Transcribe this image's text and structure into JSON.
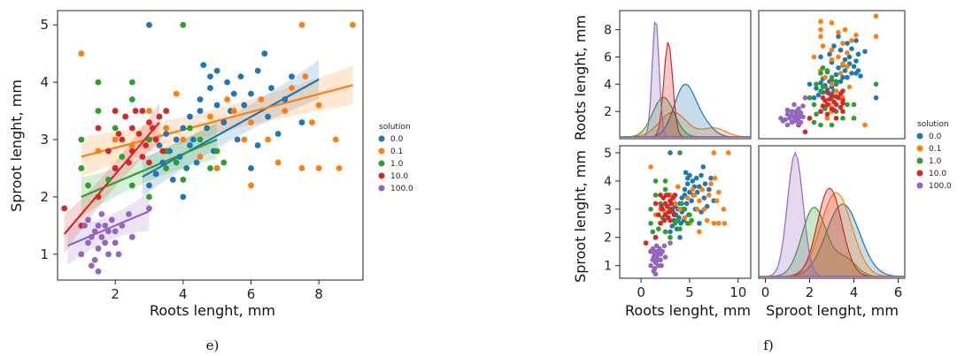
{
  "colors": {
    "0.0": "#1f77b4",
    "0.1": "#ff7f0e",
    "1.0": "#2ca02c",
    "10.0": "#d62728",
    "100.0": "#9467bd"
  },
  "chart_data": [
    {
      "id": "e",
      "type": "scatter",
      "caption": "e)",
      "xlabel": "Roots lenght, mm",
      "ylabel": "Sproot lenght, mm",
      "xlim": [
        0.3,
        9.3
      ],
      "ylim": [
        0.55,
        5.25
      ],
      "xticks": [
        2,
        4,
        6,
        8
      ],
      "yticks": [
        1,
        2,
        3,
        4,
        5
      ],
      "legend": {
        "title": "solution",
        "position": "right",
        "entries": [
          "0.0",
          "0.1",
          "1.0",
          "10.0",
          "100.0"
        ]
      },
      "regression_lines": [
        {
          "name": "0.0",
          "x": [
            2.8,
            8.0
          ],
          "y": [
            2.35,
            4.05
          ]
        },
        {
          "name": "0.1",
          "x": [
            1.0,
            9.0
          ],
          "y": [
            2.7,
            3.95
          ]
        },
        {
          "name": "1.0",
          "x": [
            1.0,
            5.0
          ],
          "y": [
            2.0,
            3.0
          ]
        },
        {
          "name": "10.0",
          "x": [
            0.5,
            3.3
          ],
          "y": [
            1.35,
            3.3
          ]
        },
        {
          "name": "100.0",
          "x": [
            0.6,
            3.0
          ],
          "y": [
            1.15,
            1.75
          ]
        }
      ],
      "series": [
        {
          "name": "0.0",
          "points": [
            [
              3.0,
              5.0
            ],
            [
              4.6,
              4.3
            ],
            [
              4.8,
              4.1
            ],
            [
              5.0,
              4.2
            ],
            [
              5.3,
              4.0
            ],
            [
              5.5,
              3.8
            ],
            [
              5.0,
              3.6
            ],
            [
              4.5,
              3.5
            ],
            [
              4.2,
              3.4
            ],
            [
              4.0,
              3.2
            ],
            [
              3.8,
              3.0
            ],
            [
              3.6,
              2.8
            ],
            [
              3.4,
              2.6
            ],
            [
              3.2,
              2.4
            ],
            [
              3.0,
              2.2
            ],
            [
              4.3,
              3.0
            ],
            [
              4.7,
              3.2
            ],
            [
              5.2,
              3.3
            ],
            [
              5.8,
              3.6
            ],
            [
              6.0,
              3.8
            ],
            [
              6.2,
              4.2
            ],
            [
              6.4,
              4.5
            ],
            [
              6.5,
              3.4
            ],
            [
              6.2,
              2.9
            ],
            [
              5.6,
              3.0
            ],
            [
              4.9,
              2.8
            ],
            [
              4.4,
              2.6
            ],
            [
              4.1,
              2.5
            ],
            [
              3.9,
              2.7
            ],
            [
              3.5,
              3.1
            ],
            [
              7.0,
              3.7
            ],
            [
              7.2,
              4.1
            ],
            [
              7.5,
              3.3
            ],
            [
              6.8,
              3.1
            ],
            [
              6.0,
              2.5
            ],
            [
              5.0,
              2.5
            ],
            [
              4.0,
              2.0
            ],
            [
              3.7,
              2.3
            ],
            [
              4.8,
              3.9
            ],
            [
              5.4,
              3.5
            ],
            [
              6.6,
              3.9
            ],
            [
              4.2,
              2.9
            ],
            [
              3.3,
              2.9
            ],
            [
              4.5,
              3.7
            ],
            [
              5.7,
              4.1
            ]
          ]
        },
        {
          "name": "0.1",
          "points": [
            [
              1.0,
              4.5
            ],
            [
              7.5,
              5.0
            ],
            [
              9.0,
              5.0
            ],
            [
              5.5,
              3.5
            ],
            [
              6.0,
              3.3
            ],
            [
              6.5,
              3.0
            ],
            [
              7.0,
              3.5
            ],
            [
              7.5,
              2.5
            ],
            [
              8.0,
              3.6
            ],
            [
              8.5,
              3.0
            ],
            [
              8.0,
              2.5
            ],
            [
              7.8,
              3.3
            ],
            [
              6.0,
              2.2
            ],
            [
              5.0,
              2.5
            ],
            [
              4.0,
              3.0
            ],
            [
              3.5,
              3.2
            ],
            [
              3.0,
              3.5
            ],
            [
              4.5,
              2.7
            ],
            [
              6.8,
              2.6
            ],
            [
              7.2,
              3.9
            ],
            [
              6.3,
              3.7
            ],
            [
              5.8,
              3.0
            ],
            [
              3.8,
              3.8
            ],
            [
              1.5,
              2.8
            ],
            [
              2.0,
              3.0
            ],
            [
              2.5,
              2.9
            ],
            [
              4.8,
              3.4
            ],
            [
              8.6,
              2.5
            ],
            [
              7.6,
              4.1
            ],
            [
              5.3,
              3.7
            ]
          ]
        },
        {
          "name": "1.0",
          "points": [
            [
              1.5,
              4.0
            ],
            [
              2.5,
              4.0
            ],
            [
              4.0,
              5.0
            ],
            [
              1.0,
              3.0
            ],
            [
              1.0,
              2.5
            ],
            [
              1.5,
              2.0
            ],
            [
              2.0,
              2.5
            ],
            [
              2.5,
              2.2
            ],
            [
              3.0,
              2.0
            ],
            [
              3.5,
              2.5
            ],
            [
              4.0,
              2.3
            ],
            [
              4.5,
              3.0
            ],
            [
              5.0,
              2.8
            ],
            [
              2.0,
              3.2
            ],
            [
              3.0,
              3.0
            ],
            [
              1.5,
              3.5
            ],
            [
              2.5,
              3.7
            ],
            [
              3.5,
              2.8
            ],
            [
              4.8,
              2.5
            ],
            [
              1.2,
              2.2
            ],
            [
              2.2,
              2.7
            ],
            [
              3.8,
              2.6
            ],
            [
              4.2,
              3.2
            ],
            [
              5.2,
              2.6
            ],
            [
              1.8,
              2.3
            ]
          ]
        },
        {
          "name": "10.0",
          "points": [
            [
              0.5,
              1.8
            ],
            [
              1.0,
              1.5
            ],
            [
              1.5,
              2.0
            ],
            [
              2.0,
              2.5
            ],
            [
              2.2,
              3.0
            ],
            [
              2.5,
              3.2
            ],
            [
              2.8,
              3.5
            ],
            [
              3.0,
              3.3
            ],
            [
              3.2,
              3.0
            ],
            [
              2.5,
              2.8
            ],
            [
              2.0,
              3.5
            ],
            [
              1.5,
              3.2
            ],
            [
              3.0,
              2.6
            ],
            [
              3.5,
              3.5
            ],
            [
              2.7,
              3.1
            ],
            [
              2.3,
              3.4
            ],
            [
              3.3,
              3.4
            ],
            [
              2.9,
              2.9
            ],
            [
              2.4,
              2.6
            ],
            [
              1.8,
              2.8
            ],
            [
              3.1,
              3.2
            ],
            [
              2.6,
              3.5
            ],
            [
              3.4,
              2.8
            ],
            [
              2.1,
              3.1
            ],
            [
              2.8,
              2.7
            ]
          ]
        },
        {
          "name": "100.0",
          "points": [
            [
              1.0,
              1.0
            ],
            [
              1.2,
              1.2
            ],
            [
              1.4,
              1.4
            ],
            [
              1.5,
              1.1
            ],
            [
              1.6,
              1.3
            ],
            [
              1.7,
              1.5
            ],
            [
              1.8,
              1.0
            ],
            [
              2.0,
              1.2
            ],
            [
              1.3,
              0.8
            ],
            [
              1.5,
              0.7
            ],
            [
              2.2,
              1.5
            ],
            [
              2.5,
              1.3
            ],
            [
              3.0,
              1.8
            ],
            [
              1.1,
              1.5
            ],
            [
              1.9,
              1.6
            ],
            [
              1.4,
              0.9
            ],
            [
              1.6,
              1.7
            ],
            [
              2.1,
              1.0
            ],
            [
              1.2,
              1.6
            ],
            [
              1.8,
              1.4
            ],
            [
              1.3,
              1.3
            ],
            [
              1.7,
              1.2
            ],
            [
              2.4,
              1.7
            ],
            [
              1.5,
              1.5
            ],
            [
              2.0,
              1.4
            ]
          ]
        }
      ]
    },
    {
      "id": "f",
      "type": "scatter",
      "caption": "f)",
      "xlabels": [
        "Roots lenght, mm",
        "Sproot lenght, mm"
      ],
      "ylabels": [
        "Roots lenght, mm",
        "Sproot lenght, mm"
      ],
      "xticks_roots": [
        0,
        5,
        10
      ],
      "xticks_sproot": [
        0,
        2,
        4,
        6
      ],
      "yticks_roots": [
        2,
        4,
        6,
        8
      ],
      "yticks_sproot": [
        1,
        2,
        3,
        4,
        5
      ],
      "legend": {
        "title": "solution",
        "position": "right",
        "entries": [
          "0.0",
          "0.1",
          "1.0",
          "10.0",
          "100.0"
        ]
      }
    }
  ]
}
